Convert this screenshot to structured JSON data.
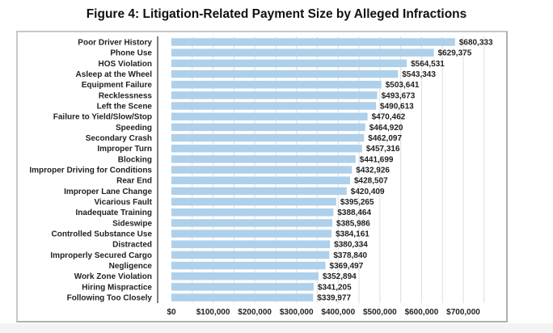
{
  "chart_data": {
    "type": "bar",
    "orientation": "horizontal",
    "title": "Figure 4: Litigation-Related Payment Size by Alleged Infractions",
    "xlabel": "",
    "ylabel": "",
    "xlim": [
      0,
      750000
    ],
    "grid": true,
    "categories": [
      "Poor Driver History",
      "Phone Use",
      "HOS Violation",
      "Asleep at the Wheel",
      "Equipment Failure",
      "Recklessness",
      "Left the Scene",
      "Failure to Yield/Slow/Stop",
      "Speeding",
      "Secondary Crash",
      "Improper Turn",
      "Blocking",
      "Improper Driving for Conditions",
      "Rear End",
      "Improper Lane Change",
      "Vicarious Fault",
      "Inadequate Training",
      "Sideswipe",
      "Controlled Substance Use",
      "Distracted",
      "Improperly Secured Cargo",
      "Negligence",
      "Work Zone Violation",
      "Hiring Mispractice",
      "Following Too Closely"
    ],
    "values": [
      680333,
      629375,
      564531,
      543343,
      503641,
      493673,
      490613,
      470462,
      464920,
      462097,
      457316,
      441699,
      432926,
      428507,
      420409,
      395265,
      388464,
      385986,
      384161,
      380334,
      378840,
      369497,
      352894,
      341205,
      339977
    ],
    "data_labels": [
      "$680,333",
      "$629,375",
      "$564,531",
      "$543,343",
      "$503,641",
      "$493,673",
      "$490,613",
      "$470,462",
      "$464,920",
      "$462,097",
      "$457,316",
      "$441,699",
      "$432,926",
      "$428,507",
      "$420,409",
      "$395,265",
      "$388,464",
      "$385,986",
      "$384,161",
      "$380,334",
      "$378,840",
      "$369,497",
      "$352,894",
      "$341,205",
      "$339,977"
    ],
    "x_ticks": [
      0,
      100000,
      200000,
      300000,
      400000,
      500000,
      600000,
      700000
    ],
    "x_tick_labels": [
      "$0",
      "$100,000",
      "$200,000",
      "$300,000",
      "$400,000",
      "$500,000",
      "$600,000",
      "$700,000"
    ],
    "bar_color": "#aed0ea"
  }
}
